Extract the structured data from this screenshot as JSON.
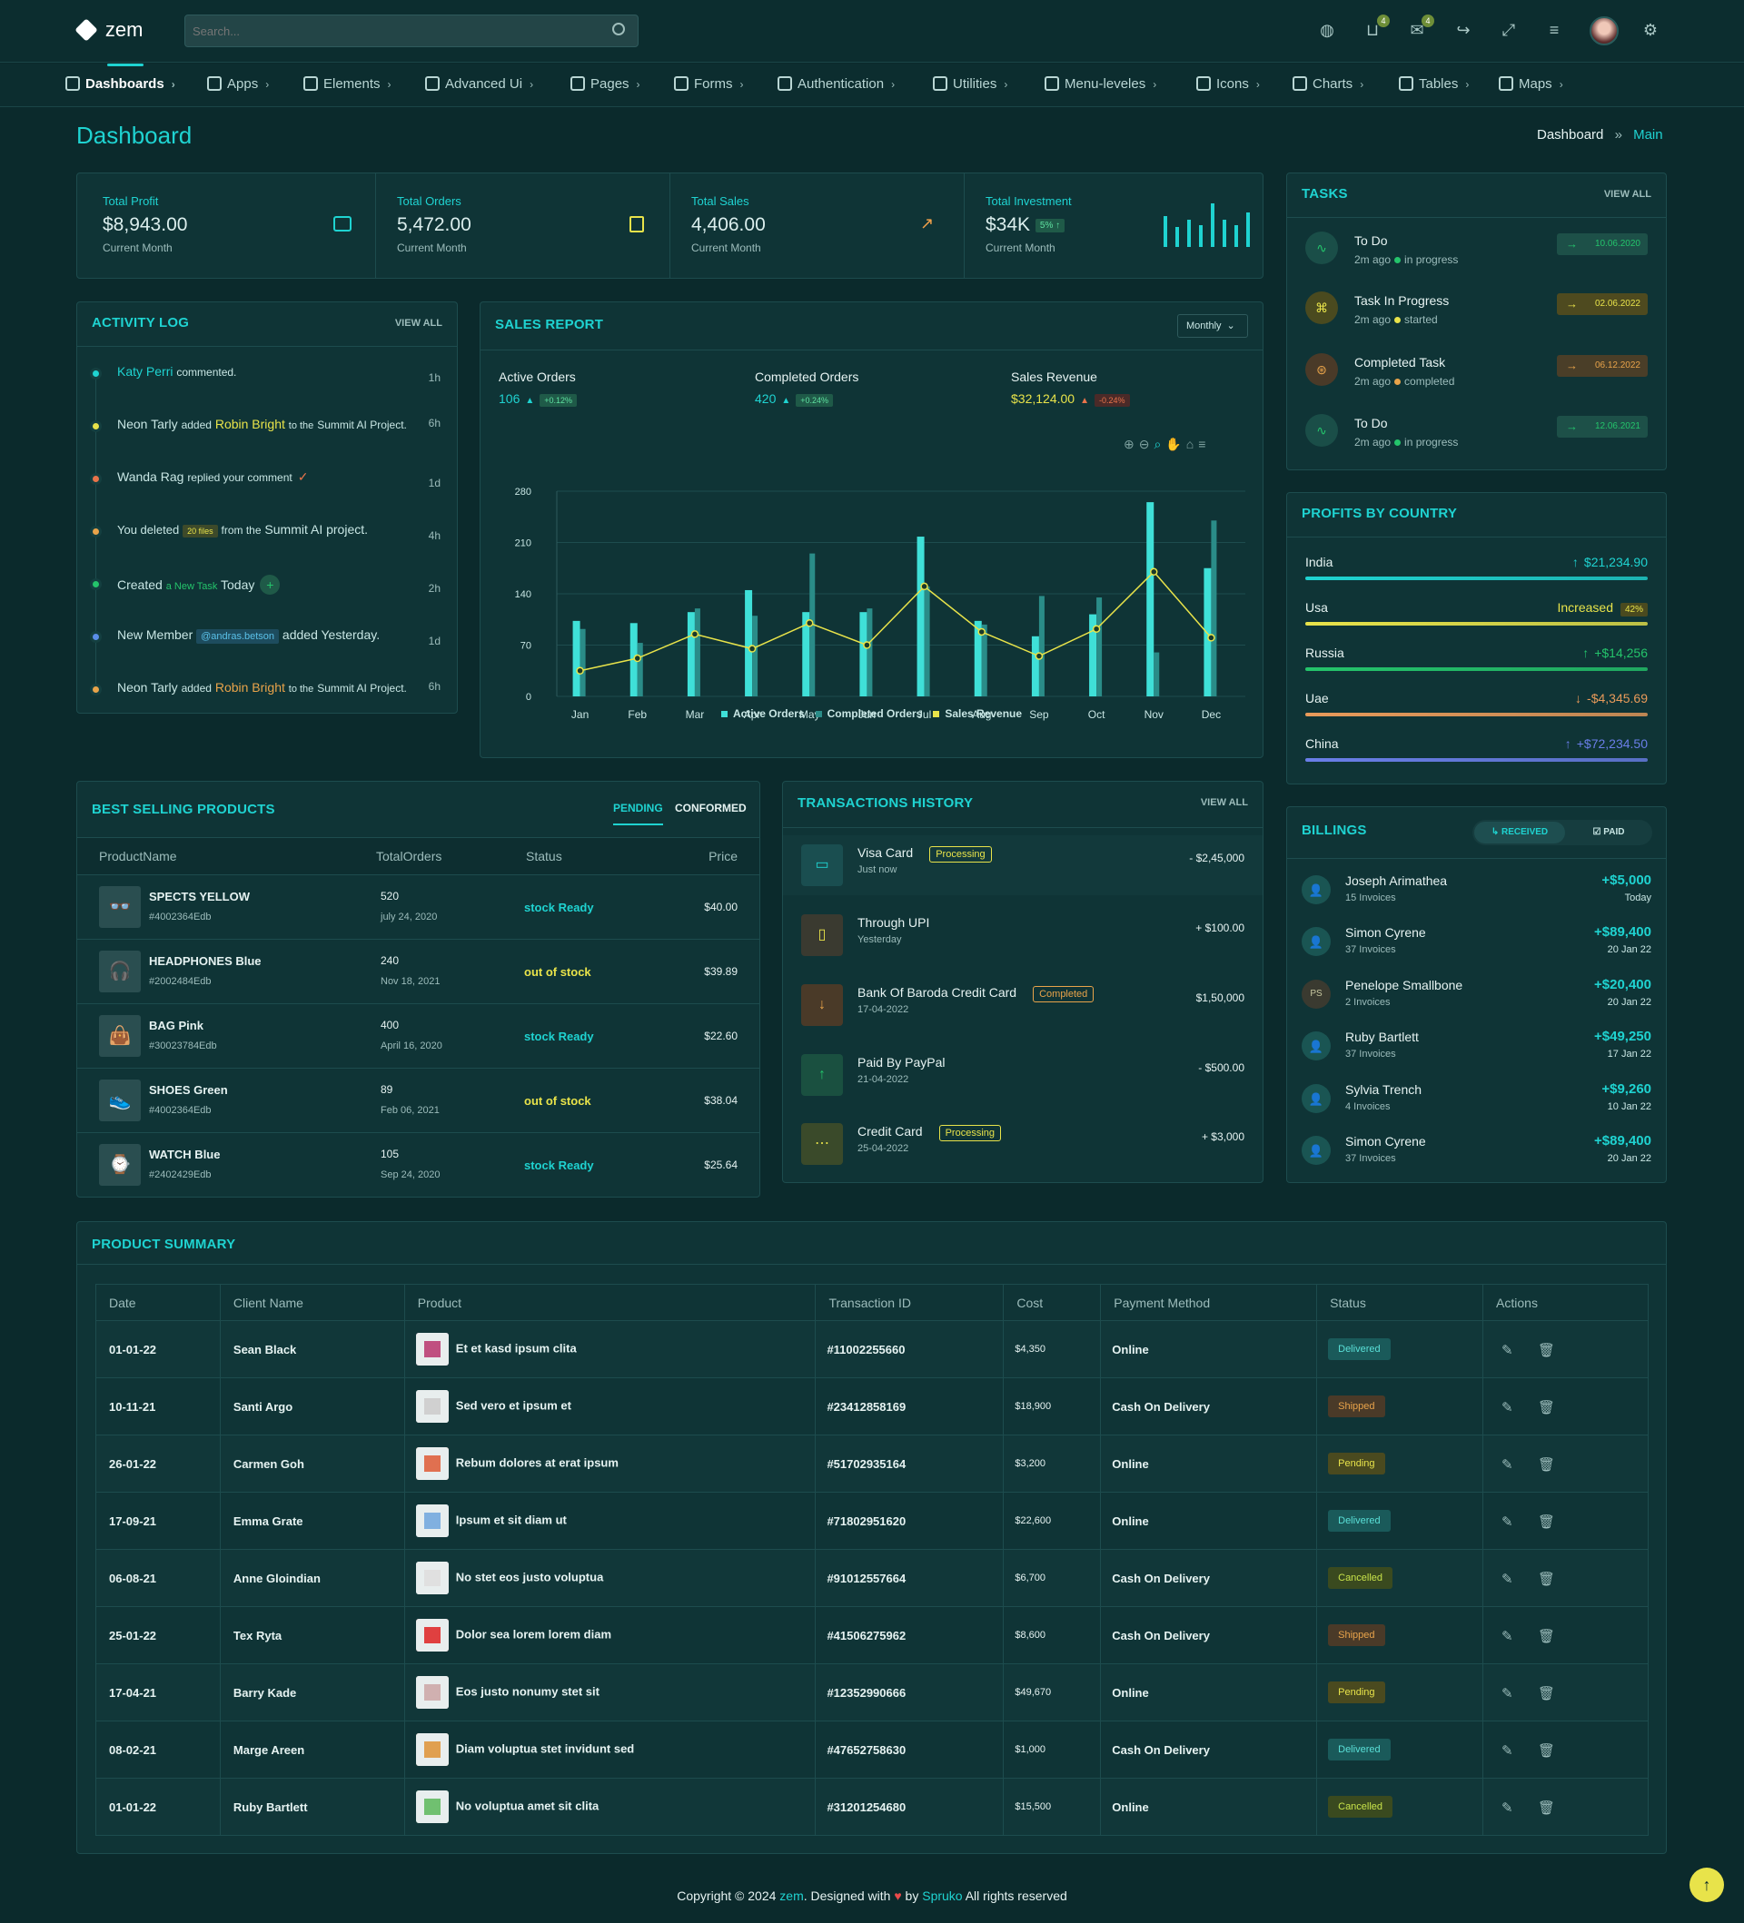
{
  "header": {
    "logo": "zem",
    "search_placeholder": "Search...",
    "cart_count": "4",
    "mail_count": "4"
  },
  "nav": [
    "Dashboards",
    "Apps",
    "Elements",
    "Advanced Ui",
    "Pages",
    "Forms",
    "Authentication",
    "Utilities",
    "Menu-leveles",
    "Icons",
    "Charts",
    "Tables",
    "Maps"
  ],
  "page": {
    "title": "Dashboard",
    "crumb1": "Dashboard",
    "crumb2": "Main"
  },
  "kpis": [
    {
      "label": "Total Profit",
      "value": "$8,943.00",
      "sub": "Current Month"
    },
    {
      "label": "Total Orders",
      "value": "5,472.00",
      "sub": "Current Month"
    },
    {
      "label": "Total Sales",
      "value": "4,406.00",
      "sub": "Current Month"
    },
    {
      "label": "Total Investment",
      "value": "$34K",
      "badge": "5%",
      "sub": "Current Month"
    }
  ],
  "activity": {
    "title": "Activity Log",
    "view_all": "VIEW ALL",
    "items": [
      {
        "a": "Katy Perri",
        "b": "commented.",
        "time": "1h"
      },
      {
        "a": "Neon Tarly",
        "b": "added",
        "c": "Robin Bright",
        "d": "to the",
        "e": "Summit AI Project.",
        "time": "6h"
      },
      {
        "a": "Wanda Rag",
        "b": "replied your comment",
        "time": "1d"
      },
      {
        "a": "You deleted",
        "b": "20 files",
        "c": "from the",
        "d": "Summit AI project.",
        "time": "4h"
      },
      {
        "a": "Created",
        "b": "a New Task",
        "c": "Today",
        "time": "2h"
      },
      {
        "a": "New Member",
        "b": "@andras.betson",
        "c": "added Yesterday.",
        "time": "1d"
      },
      {
        "a": "Neon Tarly",
        "b": "added",
        "c": "Robin Bright",
        "d": "to the",
        "e": "Summit AI Project.",
        "time": "6h"
      }
    ]
  },
  "sales": {
    "title": "Sales Report",
    "filter": "Monthly",
    "stats": [
      {
        "label": "Active Orders",
        "value": "106",
        "pct": "+0.12%"
      },
      {
        "label": "Completed Orders",
        "value": "420",
        "pct": "+0.24%"
      },
      {
        "label": "Sales Revenue",
        "value": "$32,124.00",
        "pct": "-0.24%"
      }
    ]
  },
  "chart_data": {
    "type": "bar",
    "categories": [
      "Jan",
      "Feb",
      "Mar",
      "Apr",
      "May",
      "Jun",
      "Jul",
      "Aug",
      "Sep",
      "Oct",
      "Nov",
      "Dec"
    ],
    "ylim": [
      0,
      280
    ],
    "yticks": [
      0,
      70,
      140,
      210,
      280
    ],
    "series": [
      {
        "name": "Active Orders",
        "type": "bar",
        "color": "#3fe0d8",
        "values": [
          103,
          100,
          115,
          145,
          115,
          115,
          218,
          103,
          82,
          112,
          265,
          175
        ]
      },
      {
        "name": "Completed Orders",
        "type": "bar",
        "color": "#2a8c88",
        "values": [
          92,
          73,
          120,
          110,
          195,
          120,
          150,
          98,
          137,
          135,
          60,
          240
        ]
      },
      {
        "name": "Sales Revenue",
        "type": "line",
        "color": "#e8e34a",
        "values": [
          35,
          52,
          85,
          65,
          100,
          70,
          150,
          88,
          55,
          92,
          170,
          80
        ]
      }
    ]
  },
  "tasks": {
    "title": "Tasks",
    "view_all": "VIEW ALL",
    "items": [
      {
        "name": "To Do",
        "ago": "2m ago",
        "status": "in progress",
        "date": "10.06.2020",
        "icon": "pulse-icon"
      },
      {
        "name": "Task In Progress",
        "ago": "2m ago",
        "status": "started",
        "date": "02.06.2022",
        "icon": "command-icon"
      },
      {
        "name": "Completed Task",
        "ago": "2m ago",
        "status": "completed",
        "date": "06.12.2022",
        "icon": "globe-icon"
      },
      {
        "name": "To Do",
        "ago": "2m ago",
        "status": "in progress",
        "date": "12.06.2021",
        "icon": "pulse-icon"
      }
    ]
  },
  "profits": {
    "title": "Profits By Country",
    "items": [
      {
        "country": "India",
        "value": "$21,234.90",
        "fill": 1.0,
        "color": "#1fd3d1"
      },
      {
        "country": "Usa",
        "value": "Increased",
        "badge": "42%",
        "fill": 1.0,
        "color": "#e8e34a"
      },
      {
        "country": "Russia",
        "value": "+$14,256",
        "fill": 1.0,
        "color": "#24c46b"
      },
      {
        "country": "Uae",
        "value": "-$4,345.69",
        "fill": 1.0,
        "color": "#e89a5a"
      },
      {
        "country": "China",
        "value": "+$72,234.50",
        "fill": 1.0,
        "color": "#6a7ee8"
      }
    ]
  },
  "best_selling": {
    "title": "Best Selling Products",
    "tab1": "PENDING",
    "tab2": "CONFORMED",
    "cols": [
      "ProductName",
      "TotalOrders",
      "Status",
      "Price"
    ],
    "rows": [
      {
        "name": "SPECTS YELLOW",
        "id": "#4002364Edb",
        "orders": "520",
        "date": "july 24, 2020",
        "status": "stock Ready",
        "price": "$40.00"
      },
      {
        "name": "HEADPHONES Blue",
        "id": "#2002484Edb",
        "orders": "240",
        "date": "Nov 18, 2021",
        "status": "out of stock",
        "price": "$39.89"
      },
      {
        "name": "BAG Pink",
        "id": "#30023784Edb",
        "orders": "400",
        "date": "April 16, 2020",
        "status": "stock Ready",
        "price": "$22.60"
      },
      {
        "name": "SHOES Green",
        "id": "#4002364Edb",
        "orders": "89",
        "date": "Feb 06, 2021",
        "status": "out of stock",
        "price": "$38.04"
      },
      {
        "name": "WATCH Blue",
        "id": "#2402429Edb",
        "orders": "105",
        "date": "Sep 24, 2020",
        "status": "stock Ready",
        "price": "$25.64"
      }
    ]
  },
  "transactions": {
    "title": "Transactions History",
    "view_all": "VIEW ALL",
    "items": [
      {
        "name": "Visa Card",
        "tag": "Processing",
        "sub": "Just now",
        "amount": "- $2,45,000"
      },
      {
        "name": "Through UPI",
        "tag": "",
        "sub": "Yesterday",
        "amount": "+ $100.00"
      },
      {
        "name": "Bank Of Baroda Credit Card",
        "tag": "Completed",
        "sub": "17-04-2022",
        "amount": "$1,50,000"
      },
      {
        "name": "Paid By PayPal",
        "tag": "",
        "sub": "21-04-2022",
        "amount": "- $500.00"
      },
      {
        "name": "Credit Card",
        "tag": "Processing",
        "sub": "25-04-2022",
        "amount": "+ $3,000"
      }
    ]
  },
  "billings": {
    "title": "Billings",
    "tab1": "RECEIVED",
    "tab2": "PAID",
    "items": [
      {
        "name": "Joseph Arimathea",
        "sub": "15 Invoices",
        "amount": "+$5,000",
        "date": "Today",
        "initials": ""
      },
      {
        "name": "Simon Cyrene",
        "sub": "37 Invoices",
        "amount": "+$89,400",
        "date": "20 Jan 22",
        "initials": ""
      },
      {
        "name": "Penelope Smallbone",
        "sub": "2 Invoices",
        "amount": "+$20,400",
        "date": "20 Jan 22",
        "initials": "PS"
      },
      {
        "name": "Ruby Bartlett",
        "sub": "37 Invoices",
        "amount": "+$49,250",
        "date": "17 Jan 22",
        "initials": ""
      },
      {
        "name": "Sylvia Trench",
        "sub": "4 Invoices",
        "amount": "+$9,260",
        "date": "10 Jan 22",
        "initials": ""
      },
      {
        "name": "Simon Cyrene",
        "sub": "37 Invoices",
        "amount": "+$89,400",
        "date": "20 Jan 22",
        "initials": ""
      }
    ]
  },
  "summary": {
    "title": "Product Summary",
    "cols": [
      "Date",
      "Client Name",
      "Product",
      "Transaction ID",
      "Cost",
      "Payment Method",
      "Status",
      "Actions"
    ],
    "rows": [
      {
        "date": "01-01-22",
        "client": "Sean Black",
        "product": "Et et kasd ipsum clita",
        "tid": "#11002255660",
        "cost": "$4,350",
        "method": "Online",
        "status": "Delivered"
      },
      {
        "date": "10-11-21",
        "client": "Santi Argo",
        "product": "Sed vero et ipsum et",
        "tid": "#23412858169",
        "cost": "$18,900",
        "method": "Cash On Delivery",
        "status": "Shipped"
      },
      {
        "date": "26-01-22",
        "client": "Carmen Goh",
        "product": "Rebum dolores at erat ipsum",
        "tid": "#51702935164",
        "cost": "$3,200",
        "method": "Online",
        "status": "Pending"
      },
      {
        "date": "17-09-21",
        "client": "Emma Grate",
        "product": "Ipsum et sit diam ut",
        "tid": "#71802951620",
        "cost": "$22,600",
        "method": "Online",
        "status": "Delivered"
      },
      {
        "date": "06-08-21",
        "client": "Anne Gloindian",
        "product": "No stet eos justo voluptua",
        "tid": "#91012557664",
        "cost": "$6,700",
        "method": "Cash On Delivery",
        "status": "Cancelled"
      },
      {
        "date": "25-01-22",
        "client": "Tex Ryta",
        "product": "Dolor sea lorem lorem diam",
        "tid": "#41506275962",
        "cost": "$8,600",
        "method": "Cash On Delivery",
        "status": "Shipped"
      },
      {
        "date": "17-04-21",
        "client": "Barry Kade",
        "product": "Eos justo nonumy stet sit",
        "tid": "#12352990666",
        "cost": "$49,670",
        "method": "Online",
        "status": "Pending"
      },
      {
        "date": "08-02-21",
        "client": "Marge Areen",
        "product": "Diam voluptua stet invidunt sed",
        "tid": "#47652758630",
        "cost": "$1,000",
        "method": "Cash On Delivery",
        "status": "Delivered"
      },
      {
        "date": "01-01-22",
        "client": "Ruby Bartlett",
        "product": "No voluptua amet sit clita",
        "tid": "#31201254680",
        "cost": "$15,500",
        "method": "Online",
        "status": "Cancelled"
      }
    ]
  },
  "footer": {
    "a": "Copyright © 2024",
    "b": "zem",
    "c": ". Designed with",
    "d": "by",
    "e": "Spruko",
    "f": "All rights reserved"
  },
  "colors": {
    "accent": "#1fd3d1",
    "yellow": "#e8e34a",
    "bg": "#0b2a2c",
    "card": "#0f3436"
  }
}
